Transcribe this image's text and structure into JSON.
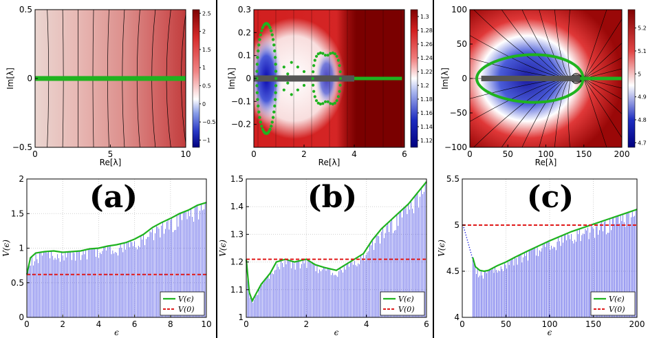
{
  "colors": {
    "divider": "#000000",
    "green": "#1fb31f",
    "blue": "#1f24e0",
    "red": "#e01818",
    "grey": "#555555",
    "grid": "#cfcfcf"
  },
  "top_panels": [
    {
      "id": "a",
      "xlim": [
        0,
        10
      ],
      "ylim": [
        -0.5,
        0.5
      ],
      "xticks": [
        "0",
        "5",
        "10"
      ],
      "xtick_vals": [
        0,
        5,
        10
      ],
      "yticks": [
        "0.5",
        "0",
        "−0.5"
      ],
      "ytick_vals": [
        0.5,
        0,
        -0.5
      ],
      "xlabel": "Re[λ]",
      "ylabel": "Im[λ]",
      "colorbar": {
        "ticks": [
          "2.5",
          "2",
          "1.5",
          "1",
          "0.5",
          "0",
          "−0.5",
          "−1"
        ],
        "range": [
          -1.2,
          2.6
        ],
        "tick_vals": [
          2.5,
          2,
          1.5,
          1,
          0.5,
          0,
          -0.5,
          -1
        ]
      }
    },
    {
      "id": "b",
      "xlim": [
        0,
        6
      ],
      "ylim": [
        -0.3,
        0.3
      ],
      "xticks": [
        "0",
        "2",
        "4",
        "6"
      ],
      "xtick_vals": [
        0,
        2,
        4,
        6
      ],
      "yticks": [
        "0.3",
        "0.2",
        "0.1",
        "0",
        "−0.1",
        "−0.2"
      ],
      "ytick_vals": [
        0.3,
        0.2,
        0.1,
        0,
        -0.1,
        -0.2
      ],
      "xlabel": "Re[λ]",
      "ylabel": "Im[λ]",
      "colorbar": {
        "ticks": [
          "1.3",
          "1.28",
          "1.26",
          "1.24",
          "1.22",
          "1.2",
          "1.18",
          "1.16",
          "1.14",
          "1.12"
        ],
        "range": [
          1.11,
          1.31
        ],
        "tick_vals": [
          1.3,
          1.28,
          1.26,
          1.24,
          1.22,
          1.2,
          1.18,
          1.16,
          1.14,
          1.12
        ]
      }
    },
    {
      "id": "c",
      "xlim": [
        0,
        200
      ],
      "ylim": [
        -100,
        100
      ],
      "xticks": [
        "0",
        "50",
        "100",
        "150",
        "200"
      ],
      "xtick_vals": [
        0,
        50,
        100,
        150,
        200
      ],
      "yticks": [
        "100",
        "50",
        "0",
        "−50",
        "−100"
      ],
      "ytick_vals": [
        100,
        50,
        0,
        -50,
        -100
      ],
      "xlabel": "Re[λ]",
      "ylabel": "Im[λ]",
      "colorbar": {
        "ticks": [
          "5.2",
          "5.1",
          "5",
          "4.9",
          "4.8",
          "4.7"
        ],
        "range": [
          4.68,
          5.28
        ],
        "tick_vals": [
          5.2,
          5.1,
          5,
          4.9,
          4.8,
          4.7
        ]
      }
    }
  ],
  "panel_labels": [
    "(a)",
    "(b)",
    "(c)"
  ],
  "chart_data": [
    {
      "type": "line",
      "title": "(a)",
      "xlabel": "ϵ",
      "ylabel": "V(ϵ)",
      "xlim": [
        0,
        10
      ],
      "ylim": [
        0,
        2
      ],
      "xticks": [
        "0",
        "2",
        "4",
        "6",
        "8",
        "10"
      ],
      "xtick_vals": [
        0,
        2,
        4,
        6,
        8,
        10
      ],
      "yticks": [
        "2",
        "1.5",
        "1",
        "0.5",
        "0"
      ],
      "ytick_vals": [
        2,
        1.5,
        1,
        0.5,
        0
      ],
      "grid": true,
      "legend": {
        "position": "bottom-right",
        "entries": [
          "V(ϵ)",
          "V(0)"
        ]
      },
      "series": [
        {
          "name": "V(ϵ)",
          "x": [
            0,
            0.2,
            0.5,
            1,
            1.5,
            2,
            2.5,
            3,
            3.5,
            4,
            4.5,
            5,
            5.5,
            6,
            6.5,
            7,
            7.5,
            8,
            8.5,
            9,
            9.5,
            10
          ],
          "values": [
            0.62,
            0.86,
            0.93,
            0.95,
            0.96,
            0.94,
            0.95,
            0.96,
            0.99,
            1.0,
            1.03,
            1.05,
            1.08,
            1.13,
            1.2,
            1.3,
            1.37,
            1.43,
            1.5,
            1.55,
            1.62,
            1.66
          ]
        },
        {
          "name": "V(0)",
          "x": [
            0,
            10
          ],
          "values": [
            0.62,
            0.62
          ]
        }
      ]
    },
    {
      "type": "line",
      "title": "(b)",
      "xlabel": "ϵ",
      "ylabel": "V(ϵ)",
      "xlim": [
        0,
        6
      ],
      "ylim": [
        1,
        1.5
      ],
      "xticks": [
        "0",
        "2",
        "4",
        "6"
      ],
      "xtick_vals": [
        0,
        2,
        4,
        6
      ],
      "yticks": [
        "1.5",
        "1.4",
        "1.3",
        "1.2",
        "1.1",
        "1"
      ],
      "ytick_vals": [
        1.5,
        1.4,
        1.3,
        1.2,
        1.1,
        1
      ],
      "grid": true,
      "legend": {
        "position": "bottom-right",
        "entries": [
          "V(ϵ)",
          "V(0)"
        ]
      },
      "series": [
        {
          "name": "V(ϵ)",
          "x": [
            0,
            0.1,
            0.2,
            0.3,
            0.5,
            0.8,
            1.0,
            1.3,
            1.6,
            2.0,
            2.3,
            2.6,
            3.0,
            3.3,
            3.6,
            3.9,
            4.2,
            4.5,
            4.8,
            5.1,
            5.4,
            5.7,
            6.0
          ],
          "values": [
            1.21,
            1.09,
            1.06,
            1.08,
            1.12,
            1.16,
            1.2,
            1.21,
            1.2,
            1.21,
            1.19,
            1.18,
            1.17,
            1.19,
            1.21,
            1.23,
            1.28,
            1.32,
            1.35,
            1.38,
            1.41,
            1.45,
            1.49
          ]
        },
        {
          "name": "V(0)",
          "x": [
            0,
            6
          ],
          "values": [
            1.21,
            1.21
          ]
        }
      ]
    },
    {
      "type": "line",
      "title": "(c)",
      "xlabel": "ϵ",
      "ylabel": "V(ϵ)",
      "xlim": [
        0,
        200
      ],
      "ylim": [
        4,
        5.5
      ],
      "xticks": [
        "0",
        "50",
        "100",
        "150",
        "200"
      ],
      "xtick_vals": [
        0,
        50,
        100,
        150,
        200
      ],
      "yticks": [
        "5.5",
        "5",
        "4.5",
        "4"
      ],
      "ytick_vals": [
        5.5,
        5,
        4.5,
        4
      ],
      "grid": true,
      "legend": {
        "position": "bottom-right",
        "entries": [
          "V(ϵ)",
          "V(0)"
        ]
      },
      "series": [
        {
          "name": "V(ϵ)",
          "x": [
            12,
            15,
            20,
            25,
            30,
            40,
            50,
            60,
            75,
            100,
            125,
            150,
            175,
            200
          ],
          "values": [
            4.65,
            4.55,
            4.51,
            4.5,
            4.51,
            4.56,
            4.6,
            4.65,
            4.72,
            4.83,
            4.93,
            5.01,
            5.09,
            5.17
          ]
        },
        {
          "name": "V(0)",
          "x": [
            0,
            200
          ],
          "values": [
            5.0,
            5.0
          ]
        }
      ]
    }
  ]
}
